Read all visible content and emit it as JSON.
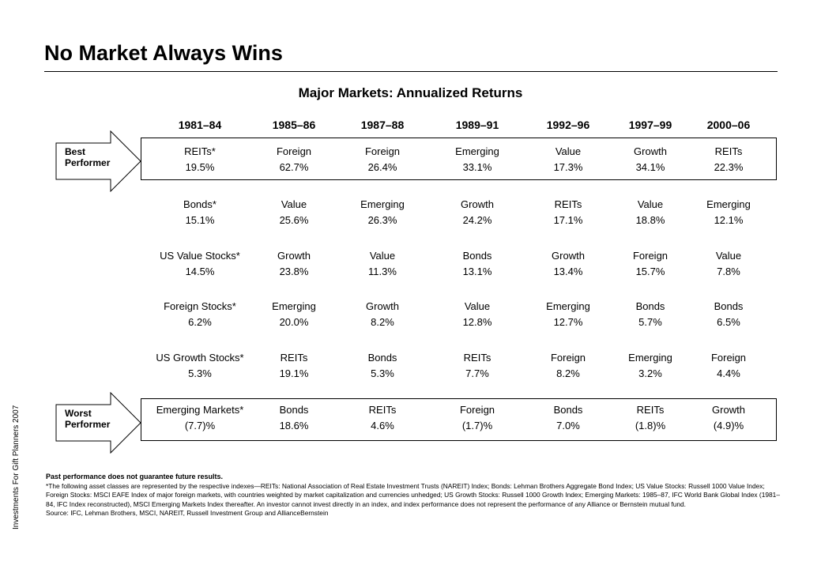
{
  "title": "No Market Always Wins",
  "subtitle": "Major Markets: Annualized Returns",
  "side_text": "Investments For Gift Planners 2007",
  "best_label": [
    "Best",
    "Performer"
  ],
  "worst_label": [
    "Worst",
    "Performer"
  ],
  "periods": [
    "1981–84",
    "1985–86",
    "1987–88",
    "1989–91",
    "1992–96",
    "1997–99",
    "2000–06"
  ],
  "columns": [
    [
      [
        "REITs*",
        "19.5%"
      ],
      [
        "Bonds*",
        "15.1%"
      ],
      [
        "US Value Stocks*",
        "14.5%"
      ],
      [
        "Foreign Stocks*",
        "6.2%"
      ],
      [
        "US Growth Stocks*",
        "5.3%"
      ],
      [
        "Emerging Markets*",
        "(7.7)%"
      ]
    ],
    [
      [
        "Foreign",
        "62.7%"
      ],
      [
        "Value",
        "25.6%"
      ],
      [
        "Growth",
        "23.8%"
      ],
      [
        "Emerging",
        "20.0%"
      ],
      [
        "REITs",
        "19.1%"
      ],
      [
        "Bonds",
        "18.6%"
      ]
    ],
    [
      [
        "Foreign",
        "26.4%"
      ],
      [
        "Emerging",
        "26.3%"
      ],
      [
        "Value",
        "11.3%"
      ],
      [
        "Growth",
        "8.2%"
      ],
      [
        "Bonds",
        "5.3%"
      ],
      [
        "REITs",
        "4.6%"
      ]
    ],
    [
      [
        "Emerging",
        "33.1%"
      ],
      [
        "Growth",
        "24.2%"
      ],
      [
        "Bonds",
        "13.1%"
      ],
      [
        "Value",
        "12.8%"
      ],
      [
        "REITs",
        "7.7%"
      ],
      [
        "Foreign",
        "(1.7)%"
      ]
    ],
    [
      [
        "Value",
        "17.3%"
      ],
      [
        "REITs",
        "17.1%"
      ],
      [
        "Growth",
        "13.4%"
      ],
      [
        "Emerging",
        "12.7%"
      ],
      [
        "Foreign",
        "8.2%"
      ],
      [
        "Bonds",
        "7.0%"
      ]
    ],
    [
      [
        "Growth",
        "34.1%"
      ],
      [
        "Value",
        "18.8%"
      ],
      [
        "Foreign",
        "15.7%"
      ],
      [
        "Bonds",
        "5.7%"
      ],
      [
        "Emerging",
        "3.2%"
      ],
      [
        "REITs",
        "(1.8)%"
      ]
    ],
    [
      [
        "REITs",
        "22.3%"
      ],
      [
        "Emerging",
        "12.1%"
      ],
      [
        "Value",
        "7.8%"
      ],
      [
        "Bonds",
        "6.5%"
      ],
      [
        "Foreign",
        "4.4%"
      ],
      [
        "Growth",
        "(4.9)%"
      ]
    ]
  ],
  "footnotes": {
    "disclaimer": "Past performance does not guarantee future results.",
    "body": "*The following asset classes are represented by the respective indexes—REITs: National Association of Real Estate Investment Trusts (NAREIT) Index; Bonds: Lehman Brothers Aggregate Bond Index; US Value Stocks: Russell 1000 Value Index; Foreign Stocks: MSCI EAFE Index of major foreign markets, with countries weighted by market capitalization and currencies unhedged; US Growth Stocks: Russell 1000 Growth Index; Emerging Markets: 1985–87, IFC World Bank Global Index (1981–84, IFC Index reconstructed), MSCI Emerging Markets Index thereafter. An investor cannot invest directly in an index, and index performance does not represent the performance of any Alliance or Bernstein mutual fund.",
    "source": "Source: IFC, Lehman Brothers, MSCI, NAREIT, Russell Investment Group and AllianceBernstein"
  }
}
